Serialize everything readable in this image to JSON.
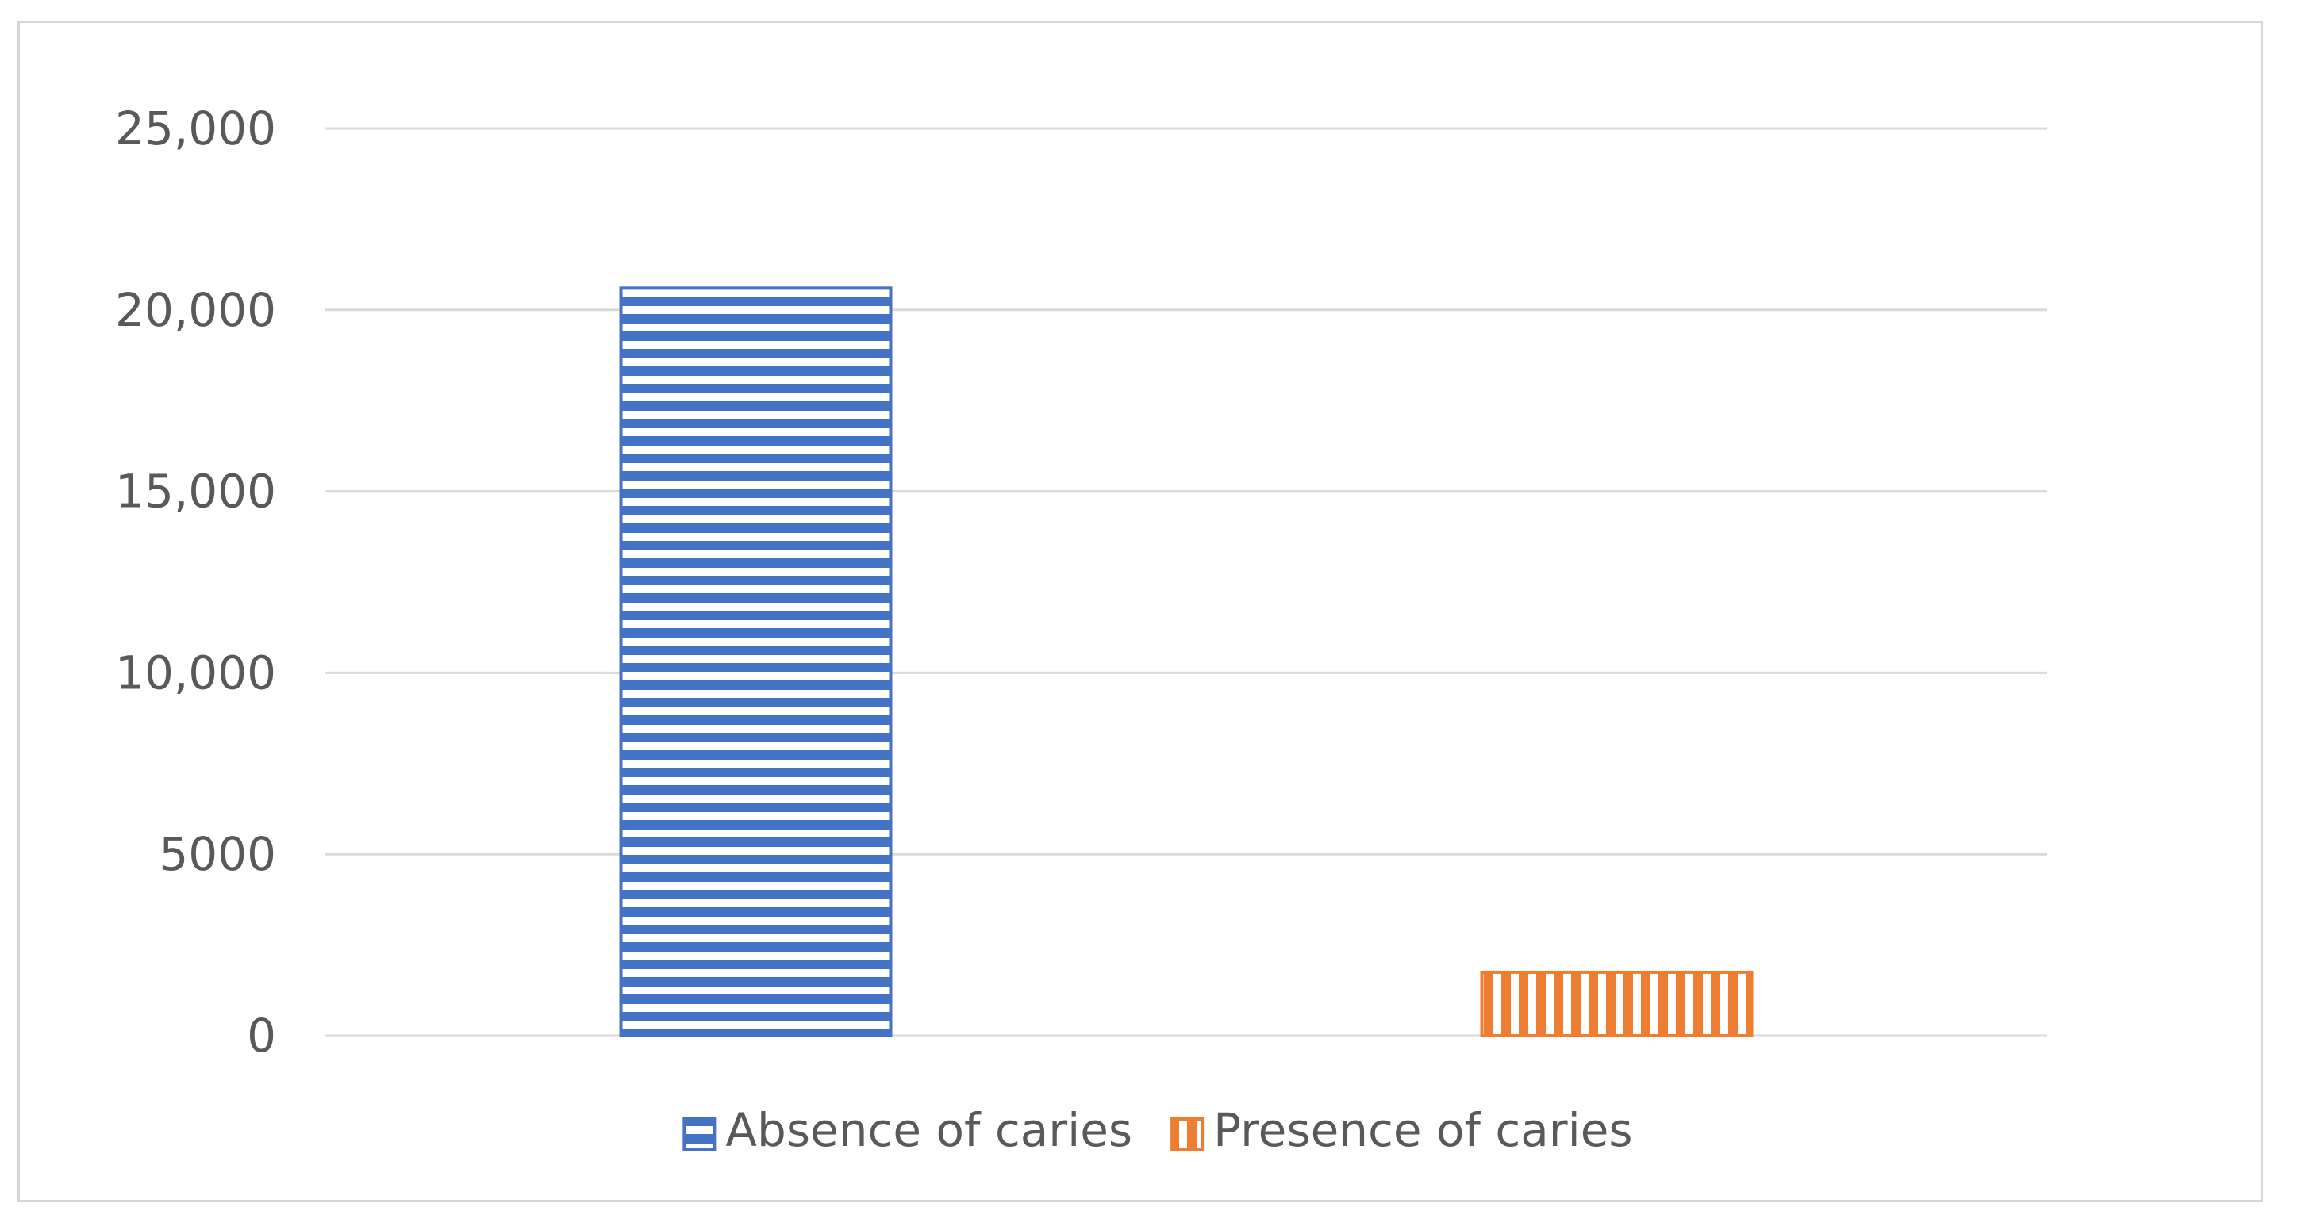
{
  "chart_data": {
    "type": "bar",
    "title": "",
    "xlabel": "",
    "ylabel": "",
    "ylim": [
      0,
      25000
    ],
    "yticks": [
      0,
      5000,
      10000,
      15000,
      20000,
      25000
    ],
    "ytick_labels": [
      "0",
      "5000",
      "10,000",
      "15,000",
      "20,000",
      "25,000"
    ],
    "grid": true,
    "legend_position": "bottom",
    "series": [
      {
        "name": "Absence of caries",
        "value": 20600,
        "color": "#4472C4",
        "pattern": "horizontal-stripes"
      },
      {
        "name": "Presence of caries",
        "value": 1750,
        "color": "#ED7D31",
        "pattern": "vertical-stripes"
      }
    ]
  }
}
